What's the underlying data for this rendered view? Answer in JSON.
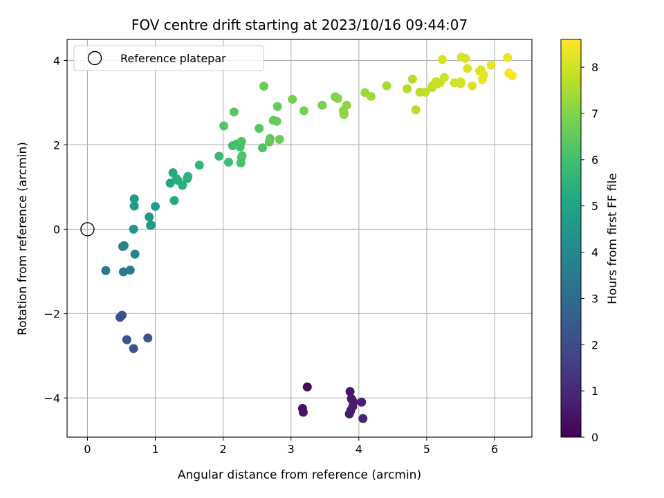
{
  "chart_data": {
    "type": "scatter",
    "title": "FOV centre drift starting at 2023/10/16 09:44:07",
    "xlabel": "Angular distance from reference (arcmin)",
    "ylabel": "Rotation from reference (arcmin)",
    "xlim": [
      -0.3,
      6.55
    ],
    "ylim": [
      -4.93,
      4.5
    ],
    "xticks": [
      0,
      1,
      2,
      3,
      4,
      5,
      6
    ],
    "yticks": [
      -4,
      -2,
      0,
      2,
      4
    ],
    "xtick_labels": [
      "0",
      "1",
      "2",
      "3",
      "4",
      "5",
      "6"
    ],
    "ytick_labels": [
      "−4",
      "−2",
      "0",
      "2",
      "4"
    ],
    "grid": true,
    "legend": {
      "position": "top-left",
      "entries": [
        "Reference platepar"
      ]
    },
    "reference_point": {
      "x": 0,
      "y": 0,
      "marker": "open-circle"
    },
    "colorbar": {
      "label": "Hours from first FF file",
      "colormap": "viridis",
      "range": [
        0,
        8.6
      ],
      "ticks": [
        0,
        1,
        2,
        3,
        4,
        5,
        6,
        7,
        8
      ],
      "tick_labels": [
        "0",
        "1",
        "2",
        "3",
        "4",
        "5",
        "6",
        "7",
        "8"
      ]
    },
    "series": [
      {
        "values": [
          [
            3.24,
            -3.74,
            0.3
          ],
          [
            3.17,
            -4.25,
            0.4
          ],
          [
            3.18,
            -4.34,
            0.45
          ],
          [
            3.87,
            -3.85,
            0.5
          ],
          [
            3.89,
            -4.02,
            0.55
          ],
          [
            3.92,
            -4.1,
            0.6
          ],
          [
            3.88,
            -4.3,
            0.62
          ],
          [
            3.86,
            -4.38,
            0.65
          ],
          [
            3.91,
            -4.2,
            0.7
          ],
          [
            4.04,
            -4.1,
            0.75
          ],
          [
            4.06,
            -4.49,
            0.8
          ],
          [
            0.48,
            -2.09,
            2.1
          ],
          [
            0.51,
            -2.04,
            2.15
          ],
          [
            0.58,
            -2.62,
            2.2
          ],
          [
            0.68,
            -2.83,
            2.25
          ],
          [
            0.89,
            -2.58,
            2.3
          ],
          [
            0.27,
            -0.98,
            3.5
          ],
          [
            0.53,
            -1.01,
            3.5
          ],
          [
            0.63,
            -0.97,
            3.55
          ],
          [
            0.52,
            -0.41,
            3.7
          ],
          [
            0.54,
            -0.39,
            3.75
          ],
          [
            0.7,
            -0.59,
            3.8
          ],
          [
            0.68,
            0.0,
            4.5
          ],
          [
            0.69,
            0.55,
            4.6
          ],
          [
            0.69,
            0.72,
            4.65
          ],
          [
            0.91,
            0.29,
            4.6
          ],
          [
            0.93,
            0.09,
            4.7
          ],
          [
            0.94,
            0.1,
            4.7
          ],
          [
            1.0,
            0.54,
            4.8
          ],
          [
            1.22,
            1.09,
            5.1
          ],
          [
            1.26,
            1.34,
            5.2
          ],
          [
            1.28,
            0.68,
            5.2
          ],
          [
            1.31,
            1.2,
            5.3
          ],
          [
            1.33,
            1.16,
            5.35
          ],
          [
            1.4,
            1.04,
            5.4
          ],
          [
            1.47,
            1.2,
            5.45
          ],
          [
            1.48,
            1.25,
            5.5
          ],
          [
            1.65,
            1.52,
            5.6
          ],
          [
            1.94,
            1.73,
            5.8
          ],
          [
            2.08,
            1.59,
            5.9
          ],
          [
            2.14,
            1.98,
            5.95
          ],
          [
            2.2,
            2.02,
            6.0
          ],
          [
            2.25,
            1.95,
            6.05
          ],
          [
            2.26,
            1.57,
            6.1
          ],
          [
            2.27,
            1.7,
            6.1
          ],
          [
            2.27,
            2.08,
            6.15
          ],
          [
            2.28,
            1.74,
            6.2
          ],
          [
            2.58,
            1.93,
            6.2
          ],
          [
            2.01,
            2.45,
            6.3
          ],
          [
            2.16,
            2.78,
            6.35
          ],
          [
            2.53,
            2.39,
            6.35
          ],
          [
            2.68,
            2.07,
            6.4
          ],
          [
            2.69,
            2.15,
            6.45
          ],
          [
            2.74,
            2.58,
            6.5
          ],
          [
            2.79,
            2.56,
            6.55
          ],
          [
            2.83,
            2.13,
            6.6
          ],
          [
            2.8,
            2.91,
            6.6
          ],
          [
            2.6,
            3.39,
            6.6
          ],
          [
            3.02,
            3.08,
            6.75
          ],
          [
            3.19,
            2.81,
            6.8
          ],
          [
            3.46,
            2.94,
            6.85
          ],
          [
            3.65,
            3.14,
            7.0
          ],
          [
            3.69,
            3.1,
            7.05
          ],
          [
            3.77,
            2.81,
            7.1
          ],
          [
            3.78,
            2.72,
            7.1
          ],
          [
            3.78,
            2.77,
            7.15
          ],
          [
            3.82,
            2.94,
            7.15
          ],
          [
            4.09,
            3.24,
            7.3
          ],
          [
            4.18,
            3.15,
            7.35
          ],
          [
            4.41,
            3.4,
            7.45
          ],
          [
            4.71,
            3.33,
            7.6
          ],
          [
            4.79,
            3.56,
            7.6
          ],
          [
            4.84,
            2.83,
            7.65
          ],
          [
            4.9,
            3.25,
            7.7
          ],
          [
            4.98,
            3.25,
            7.75
          ],
          [
            5.08,
            3.36,
            7.8
          ],
          [
            5.09,
            3.41,
            7.8
          ],
          [
            5.14,
            3.5,
            7.85
          ],
          [
            5.16,
            3.45,
            7.85
          ],
          [
            5.2,
            3.47,
            7.9
          ],
          [
            5.26,
            3.6,
            7.95
          ],
          [
            5.23,
            4.02,
            8.0
          ],
          [
            5.41,
            3.47,
            8.0
          ],
          [
            5.5,
            3.49,
            8.05
          ],
          [
            5.5,
            3.45,
            8.05
          ],
          [
            5.51,
            4.08,
            8.1
          ],
          [
            5.57,
            4.05,
            8.1
          ],
          [
            5.6,
            3.81,
            8.15
          ],
          [
            5.67,
            3.4,
            8.15
          ],
          [
            5.78,
            3.75,
            8.2
          ],
          [
            5.8,
            3.78,
            8.2
          ],
          [
            5.82,
            3.55,
            8.25
          ],
          [
            5.84,
            3.66,
            8.25
          ],
          [
            5.95,
            3.89,
            8.3
          ],
          [
            6.19,
            4.07,
            8.4
          ],
          [
            6.21,
            3.7,
            8.45
          ],
          [
            6.26,
            3.64,
            8.5
          ]
        ]
      }
    ]
  }
}
